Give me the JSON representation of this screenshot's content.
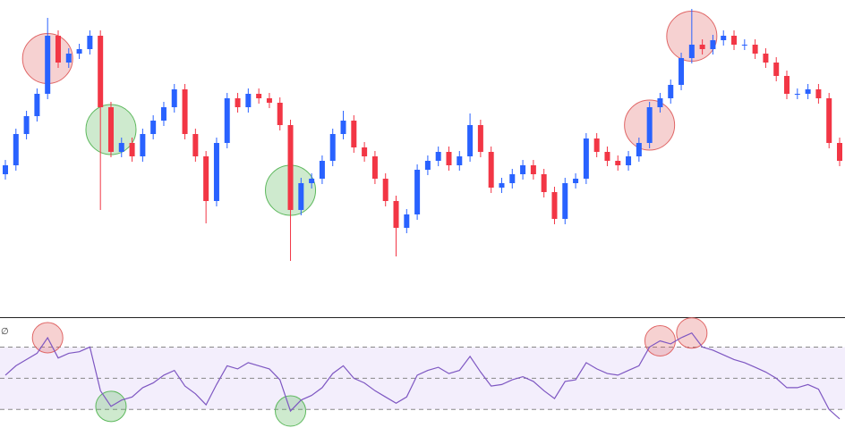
{
  "chart_data": [
    {
      "type": "candlestick",
      "ylim": [
        0,
        355
      ],
      "up_color": "#2962ff",
      "down_color": "#f23645",
      "open": [
        160,
        170,
        205,
        225,
        250,
        315,
        285,
        295,
        300,
        315,
        235,
        185,
        195,
        180,
        205,
        220,
        235,
        255,
        205,
        180,
        130,
        195,
        245,
        235,
        250,
        245,
        240,
        215,
        120,
        150,
        155,
        175,
        205,
        220,
        190,
        180,
        155,
        130,
        100,
        115,
        165,
        175,
        185,
        170,
        180,
        215,
        185,
        145,
        150,
        160,
        170,
        160,
        140,
        110,
        150,
        155,
        200,
        185,
        175,
        170,
        180,
        195,
        235,
        245,
        260,
        290,
        305,
        300,
        310,
        315,
        305,
        305,
        295,
        285,
        270,
        250,
        250,
        255,
        245,
        195
      ],
      "high": [
        176,
        211,
        231,
        256,
        335,
        321,
        301,
        306,
        321,
        321,
        241,
        201,
        201,
        211,
        226,
        241,
        261,
        261,
        211,
        186,
        201,
        251,
        251,
        256,
        256,
        251,
        246,
        221,
        156,
        161,
        181,
        211,
        231,
        226,
        196,
        186,
        161,
        136,
        121,
        171,
        181,
        191,
        191,
        186,
        228,
        221,
        191,
        156,
        166,
        176,
        176,
        166,
        146,
        156,
        161,
        206,
        206,
        191,
        181,
        186,
        201,
        241,
        251,
        266,
        296,
        345,
        311,
        316,
        321,
        321,
        311,
        311,
        301,
        291,
        276,
        256,
        261,
        261,
        251,
        201
      ],
      "low": [
        154,
        164,
        199,
        219,
        244,
        279,
        279,
        289,
        294,
        120,
        179,
        179,
        174,
        174,
        199,
        214,
        229,
        199,
        174,
        105,
        124,
        189,
        229,
        229,
        239,
        234,
        209,
        63,
        114,
        144,
        149,
        169,
        199,
        184,
        174,
        149,
        124,
        68,
        94,
        109,
        159,
        169,
        164,
        164,
        174,
        179,
        139,
        139,
        144,
        154,
        154,
        134,
        104,
        104,
        144,
        149,
        179,
        169,
        164,
        164,
        174,
        189,
        229,
        239,
        254,
        284,
        294,
        294,
        304,
        299,
        299,
        289,
        279,
        264,
        244,
        244,
        244,
        239,
        189,
        169
      ],
      "close": [
        170,
        205,
        225,
        250,
        315,
        285,
        295,
        300,
        315,
        235,
        185,
        195,
        180,
        205,
        220,
        235,
        255,
        205,
        180,
        130,
        195,
        245,
        235,
        250,
        245,
        240,
        215,
        120,
        150,
        155,
        175,
        205,
        220,
        190,
        180,
        155,
        130,
        100,
        115,
        165,
        175,
        185,
        170,
        180,
        215,
        185,
        145,
        150,
        160,
        170,
        160,
        140,
        110,
        150,
        155,
        200,
        185,
        175,
        170,
        180,
        195,
        235,
        245,
        260,
        290,
        305,
        300,
        310,
        315,
        305,
        305,
        295,
        285,
        270,
        250,
        250,
        255,
        245,
        195,
        175
      ],
      "highlights": [
        {
          "index": 4,
          "color": "#e06666"
        },
        {
          "index": 10,
          "color": "#5cb85c"
        },
        {
          "index": 27,
          "color": "#5cb85c"
        },
        {
          "index": 61,
          "color": "#e06666"
        },
        {
          "index": 65,
          "color": "#e06666"
        }
      ]
    },
    {
      "type": "line",
      "label": "∅",
      "ylim": [
        13,
        88
      ],
      "levels": [
        30,
        50,
        70
      ],
      "color": "#7e57c2",
      "band_color": "#f3eefc",
      "values": [
        52,
        58,
        62,
        66,
        76,
        63,
        66,
        67,
        70,
        42,
        32,
        36,
        38,
        44,
        47,
        52,
        55,
        45,
        40,
        33,
        46,
        58,
        56,
        60,
        58,
        56,
        49,
        29,
        36,
        39,
        44,
        53,
        58,
        50,
        47,
        42,
        38,
        34,
        38,
        52,
        55,
        57,
        53,
        55,
        64,
        54,
        45,
        46,
        49,
        51,
        48,
        42,
        37,
        48,
        49,
        60,
        56,
        53,
        52,
        55,
        58,
        70,
        74,
        72,
        76,
        79,
        70,
        68,
        65,
        62,
        60,
        57,
        54,
        50,
        44,
        44,
        46,
        43,
        30,
        24
      ],
      "highlights": [
        {
          "index": 4,
          "color": "#e06666"
        },
        {
          "index": 10,
          "color": "#5cb85c"
        },
        {
          "index": 27,
          "color": "#5cb85c"
        },
        {
          "index": 62,
          "color": "#e06666"
        },
        {
          "index": 65,
          "color": "#e06666"
        }
      ]
    }
  ]
}
